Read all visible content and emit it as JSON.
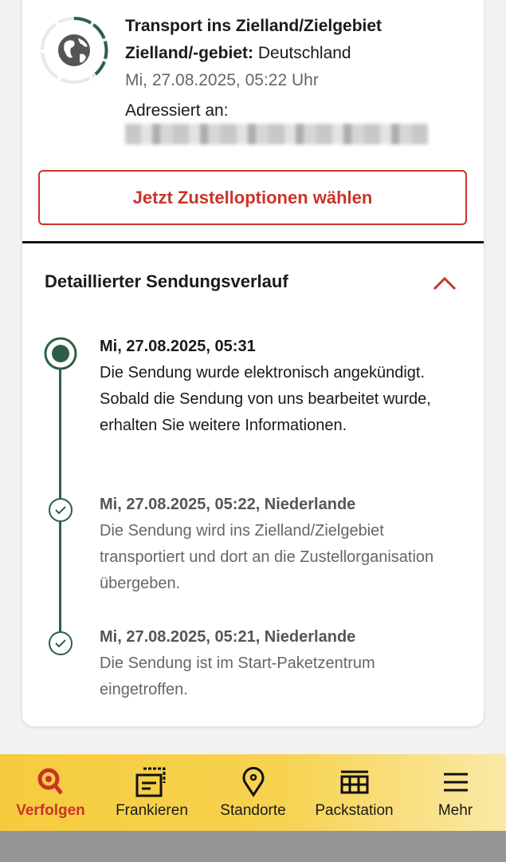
{
  "status": {
    "title": "Transport ins Zielland/Zielgebiet",
    "dest_label": "Zielland/-gebiet:",
    "dest_value": "Deutschland",
    "datetime": "Mi, 27.08.2025, 05:22 Uhr",
    "addressed_label": "Adressiert an:",
    "progress": 0.4
  },
  "action_button": "Jetzt Zustelloptionen wählen",
  "history": {
    "title": "Detaillierter Sendungsverlauf",
    "events": [
      {
        "header": "Mi, 27.08.2025, 05:31",
        "text": "Die Sendung wurde elektronisch angekündigt. Sobald die Sendung von uns bearbeitet wurde, erhalten Sie weitere Informationen."
      },
      {
        "header": "Mi, 27.08.2025, 05:22, Niederlande",
        "text": "Die Sendung wird ins Zielland/Zielgebiet transportiert und dort an die Zustellorganisation übergeben."
      },
      {
        "header": "Mi, 27.08.2025, 05:21, Niederlande",
        "text": "Die Sendung ist im Start-Paketzentrum eingetroffen."
      }
    ]
  },
  "nav": [
    {
      "label": "Verfolgen",
      "icon": "search-icon",
      "active": true
    },
    {
      "label": "Frankieren",
      "icon": "stamp-icon"
    },
    {
      "label": "Standorte",
      "icon": "location-pin-icon"
    },
    {
      "label": "Packstation",
      "icon": "packstation-icon"
    },
    {
      "label": "Mehr",
      "icon": "menu-icon"
    }
  ],
  "colors": {
    "accent": "#c9342a",
    "green": "#2e5f45",
    "nav_bg": "#f6cc3e"
  }
}
